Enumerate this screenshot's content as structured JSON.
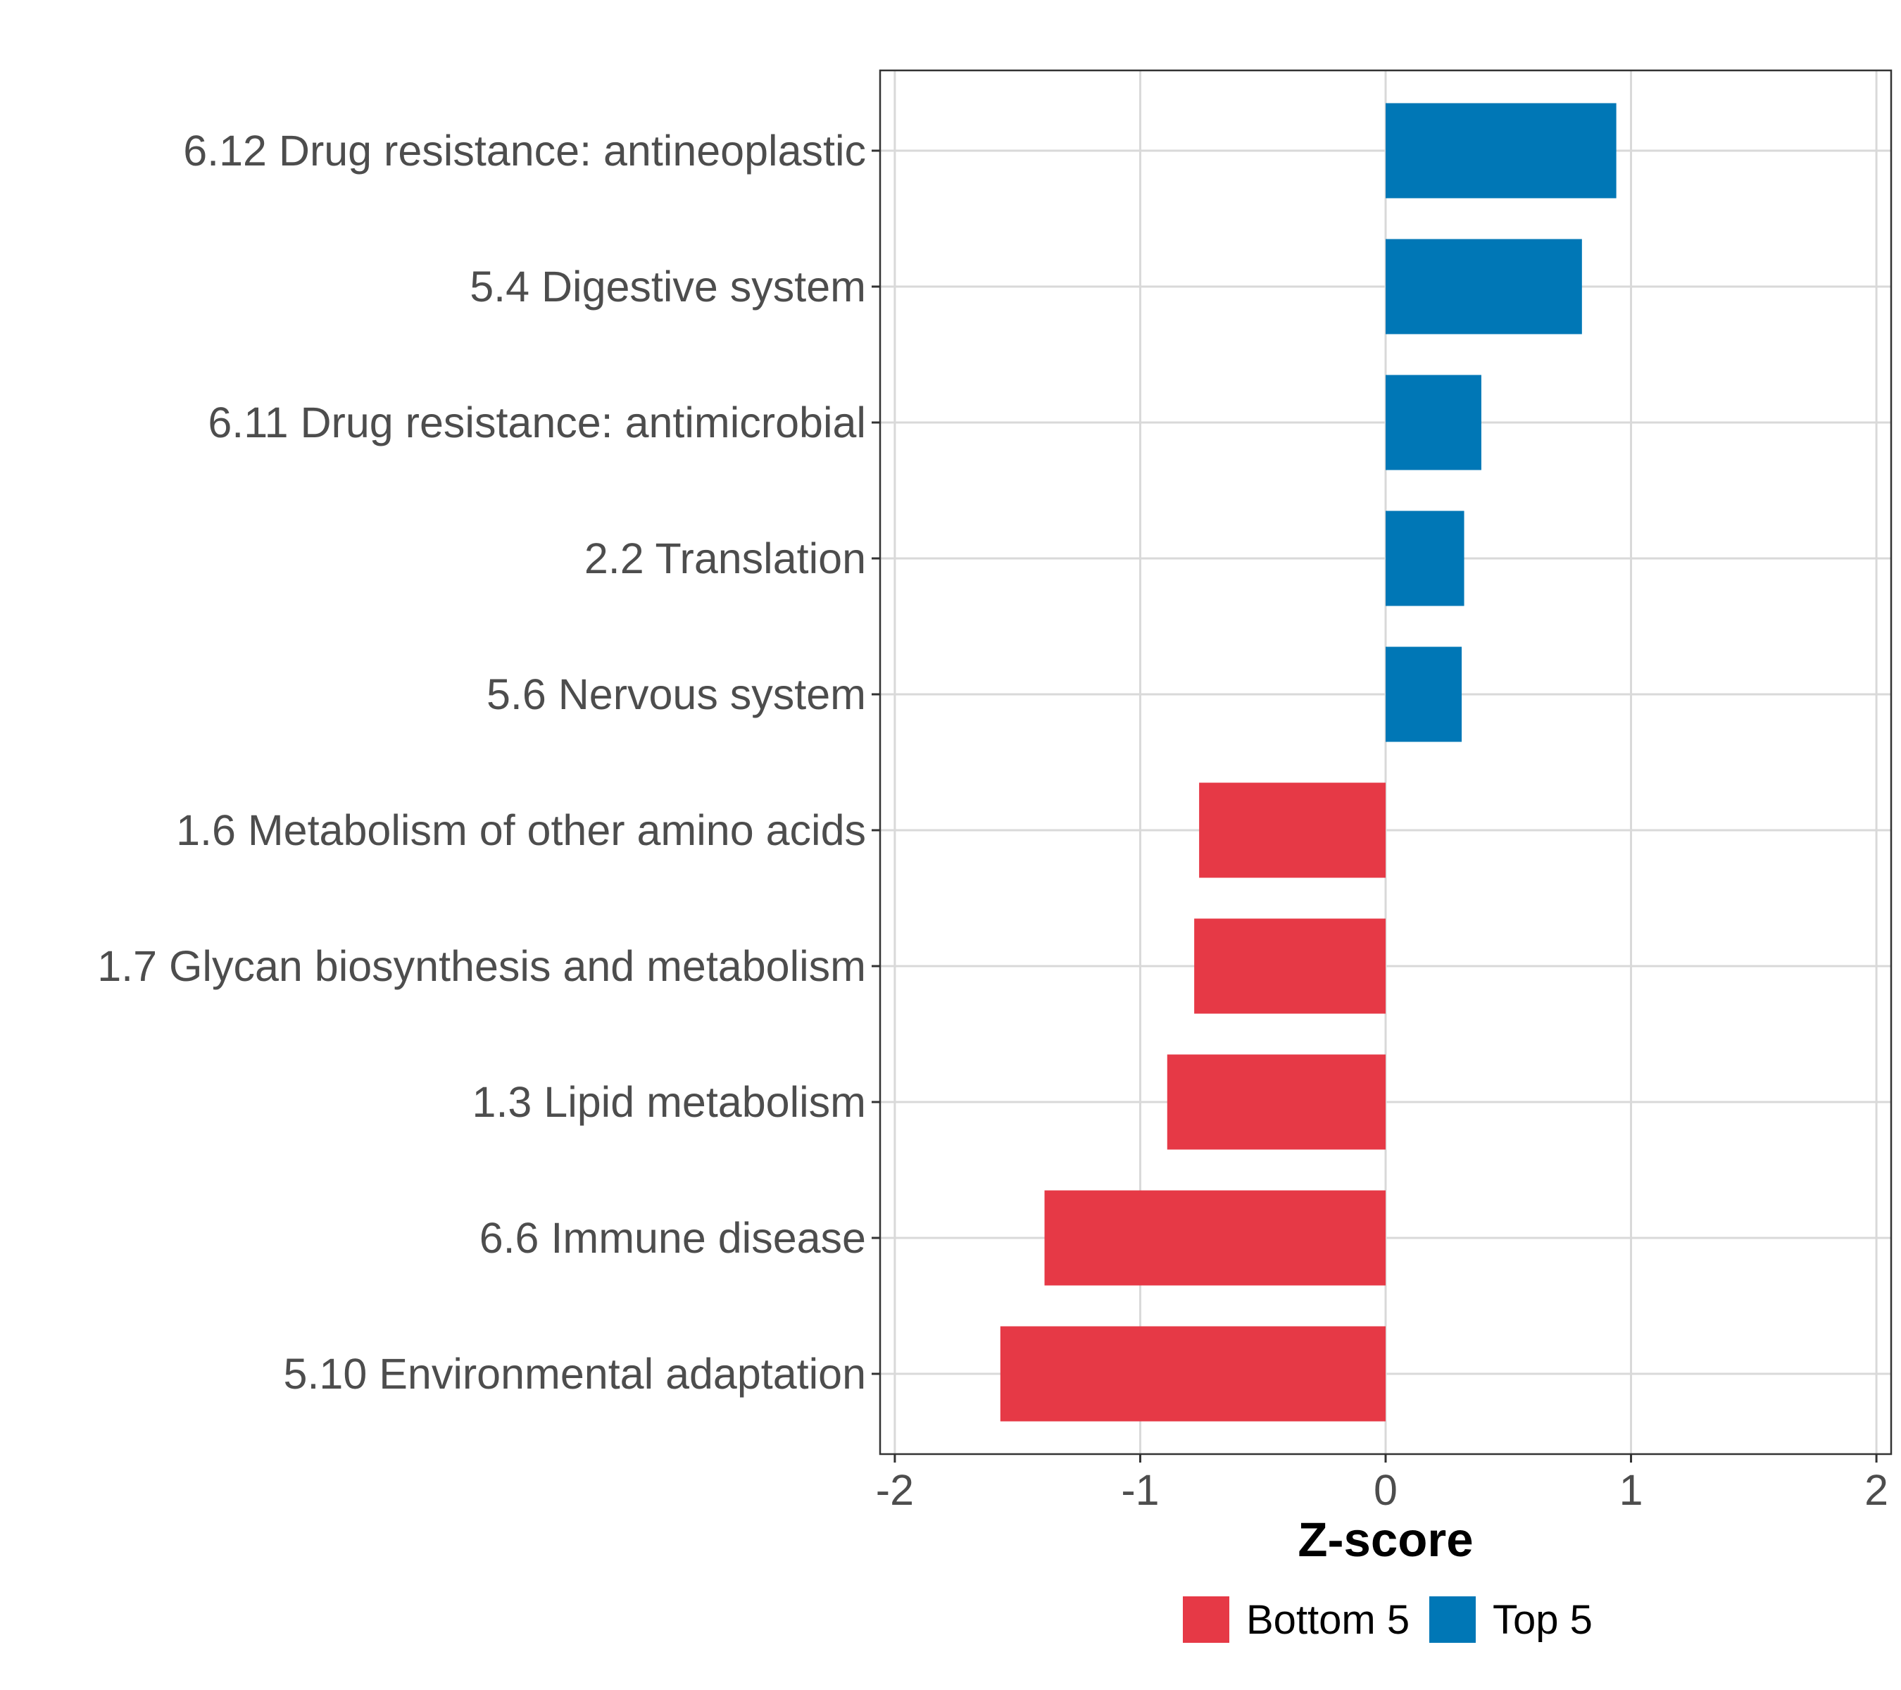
{
  "chart_data": {
    "type": "bar",
    "orientation": "horizontal",
    "categories": [
      "6.12 Drug resistance: antineoplastic",
      "5.4 Digestive system",
      "6.11 Drug resistance: antimicrobial",
      "2.2 Translation",
      "5.6 Nervous system",
      "1.6 Metabolism of other amino acids",
      "1.7 Glycan biosynthesis and metabolism",
      "1.3 Lipid metabolism",
      "6.6 Immune disease",
      "5.10 Environmental adaptation"
    ],
    "values": [
      0.94,
      0.8,
      0.39,
      0.32,
      0.31,
      -0.76,
      -0.78,
      -0.89,
      -1.39,
      -1.57
    ],
    "groups": [
      "Top 5",
      "Top 5",
      "Top 5",
      "Top 5",
      "Top 5",
      "Bottom 5",
      "Bottom 5",
      "Bottom 5",
      "Bottom 5",
      "Bottom 5"
    ],
    "xlabel": "Z-score",
    "ylabel": "",
    "xlim": [
      -2.06,
      2.06
    ],
    "xticks": [
      -2,
      -1,
      0,
      1,
      2
    ],
    "xtick_labels": [
      "-2",
      "-1",
      "0",
      "1",
      "2"
    ],
    "grid": true,
    "legend": {
      "placement": "bottom",
      "entries": [
        {
          "label": "Bottom 5",
          "color": "#e63946"
        },
        {
          "label": "Top 5",
          "color": "#0077b6"
        }
      ]
    }
  }
}
